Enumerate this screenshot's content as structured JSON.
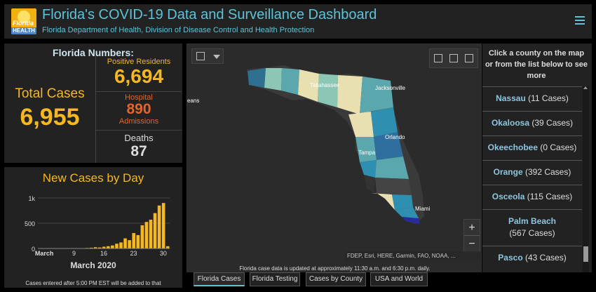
{
  "header": {
    "logo_text": "Florida",
    "logo_sub": "HEALTH",
    "title": "Florida's COVID-19 Data and Surveillance Dashboard",
    "subtitle": "Florida Department of Health, Division of Disease Control and Health Protection",
    "menu_icon": "hamburger-menu-icon"
  },
  "numbers": {
    "title": "Florida Numbers:",
    "total_label": "Total Cases",
    "total_value": "6,955",
    "positive_label": "Positive Residents",
    "positive_value": "6,694",
    "hospital_label": "Hospital",
    "hospital_value": "890",
    "hospital_label2": "Admissions",
    "deaths_label": "Deaths",
    "deaths_value": "87"
  },
  "colors": {
    "accent": "#5ec3d6",
    "cases": "#f5b820",
    "hospital": "#e0662b",
    "panel": "#222222"
  },
  "chart": {
    "title": "New Cases by Day",
    "xlabel": "March 2020",
    "note": "Cases entered after 5:00 PM EST will be added to that"
  },
  "chart_data": {
    "type": "bar",
    "title": "New Cases by Day",
    "xlabel": "March 2020",
    "ylabel": "",
    "ylim": [
      0,
      1000
    ],
    "y_ticks": [
      "0",
      "500",
      "1k"
    ],
    "x_ticks": [
      {
        "day": 2,
        "label": "March"
      },
      {
        "day": 9,
        "label": "9"
      },
      {
        "day": 16,
        "label": "16"
      },
      {
        "day": 23,
        "label": "23"
      },
      {
        "day": 30,
        "label": "30"
      }
    ],
    "x": [
      1,
      2,
      3,
      4,
      5,
      6,
      7,
      8,
      9,
      10,
      11,
      12,
      13,
      14,
      15,
      16,
      17,
      18,
      19,
      20,
      21,
      22,
      23,
      24,
      25,
      26,
      27,
      28,
      29,
      30,
      31
    ],
    "values": [
      0,
      2,
      1,
      1,
      1,
      2,
      1,
      3,
      3,
      4,
      6,
      10,
      15,
      25,
      20,
      35,
      45,
      60,
      95,
      120,
      200,
      165,
      305,
      265,
      460,
      525,
      570,
      700,
      850,
      900,
      45
    ]
  },
  "map": {
    "tools": [
      "select-tool-icon",
      "dropdown-arrow-icon"
    ],
    "widgets": [
      "home-icon",
      "list-icon",
      "basemap-gallery-icon"
    ],
    "cities": [
      "Tallahassee",
      "Jacksonville",
      "Orlando",
      "Tampa",
      "Miami",
      "eans"
    ],
    "zoom_in": "+",
    "zoom_out": "−",
    "attribution": "FDEP, Esri, HERE, Garmin, FAO, NOAA, ...",
    "note": "Florida case data is updated at approximately 11:30 a.m. and 6:30 p.m. daily."
  },
  "tabs": [
    {
      "label": "Florida Cases",
      "active": true
    },
    {
      "label": "Florida Testing",
      "active": false
    },
    {
      "label": "Cases by County",
      "active": false
    },
    {
      "label": "USA and World",
      "active": false
    }
  ],
  "county_list": {
    "header": "Click a county on the map or from the list below to see more",
    "rows": [
      {
        "name": "Nassau",
        "count": "(11 Cases)"
      },
      {
        "name": "Okaloosa",
        "count": "(39 Cases)"
      },
      {
        "name": "Okeechobee",
        "count": "(0 Cases)"
      },
      {
        "name": "Orange",
        "count": "(392 Cases)"
      },
      {
        "name": "Osceola",
        "count": "(115 Cases)"
      },
      {
        "name": "Palm Beach",
        "count": "(567 Cases)"
      },
      {
        "name": "Pasco",
        "count": "(43 Cases)"
      }
    ]
  }
}
